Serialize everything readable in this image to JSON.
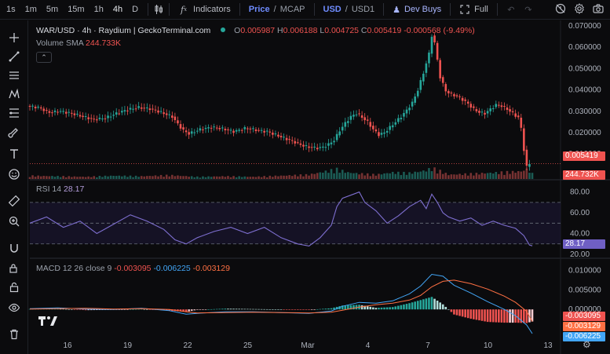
{
  "toolbar": {
    "timeframes": [
      "1s",
      "1m",
      "5m",
      "15m",
      "1h",
      "4h",
      "D"
    ],
    "active_timeframe": "4h",
    "indicators_label": "Indicators",
    "price_label": "Price",
    "mcap_label": "MCAP",
    "usd_label": "USD",
    "usd1_label": "USD1",
    "devbuys_label": "Dev Buys",
    "full_label": "Full"
  },
  "legend": {
    "title": "WAR/USD · 4h · Raydium | GeckoTerminal.com",
    "o_label": "O",
    "o": "0.005987",
    "h_label": "H",
    "h": "0.006188",
    "l_label": "L",
    "l": "0.004725",
    "c_label": "C",
    "c": "0.005419",
    "chg": "-0.000568 (-9.49%)",
    "volume_label": "Volume SMA",
    "volume": "244.733K",
    "rsi_label": "RSI 14",
    "rsi": "28.17",
    "macd_label": "MACD 12 26 close 9",
    "macd_v1": "-0.003095",
    "macd_v2": "-0.006225",
    "macd_v3": "-0.003129"
  },
  "badges": {
    "price": "0.005419",
    "volume": "244.732K",
    "rsi": "28.17",
    "macd1": "-0.003095",
    "macd2": "-0.003129",
    "macd3": "-0.006225"
  },
  "colors": {
    "up": "#26a69a",
    "down": "#ef5350",
    "rsi": "#7e6fd0",
    "macd": "#42a5f5",
    "signal": "#ff7043",
    "accent": "#6f8cff"
  },
  "chart_data": [
    {
      "type": "candlestick",
      "title": "WAR/USD · 4h · Raydium | GeckoTerminal.com",
      "x_ticks": [
        "16",
        "19",
        "22",
        "25",
        "Mar",
        "4",
        "7",
        "10",
        "13"
      ],
      "y_ticks": [
        "0.070000",
        "0.060000",
        "0.050000",
        "0.040000",
        "0.030000",
        "0.020000",
        "0.010000",
        "0.000000"
      ],
      "ylim": [
        -0.0006,
        0.07
      ],
      "close_path": [
        [
          0,
          0.0325
        ],
        [
          4,
          0.0318
        ],
        [
          8,
          0.0295
        ],
        [
          12,
          0.03
        ],
        [
          16,
          0.029
        ],
        [
          20,
          0.0275
        ],
        [
          24,
          0.0262
        ],
        [
          28,
          0.0268
        ],
        [
          32,
          0.029
        ],
        [
          36,
          0.0308
        ],
        [
          40,
          0.0318
        ],
        [
          44,
          0.0312
        ],
        [
          48,
          0.0295
        ],
        [
          52,
          0.0275
        ],
        [
          54,
          0.024
        ],
        [
          56,
          0.021
        ],
        [
          58,
          0.0195
        ],
        [
          60,
          0.0205
        ],
        [
          62,
          0.0215
        ],
        [
          64,
          0.022
        ],
        [
          66,
          0.0225
        ],
        [
          68,
          0.0222
        ],
        [
          70,
          0.0218
        ],
        [
          72,
          0.0212
        ],
        [
          74,
          0.0205
        ],
        [
          76,
          0.0212
        ],
        [
          78,
          0.022
        ],
        [
          80,
          0.0218
        ],
        [
          82,
          0.0212
        ],
        [
          84,
          0.0208
        ],
        [
          86,
          0.0205
        ],
        [
          88,
          0.0195
        ],
        [
          90,
          0.0185
        ],
        [
          92,
          0.0175
        ],
        [
          94,
          0.0165
        ],
        [
          96,
          0.0155
        ],
        [
          98,
          0.0143
        ],
        [
          100,
          0.0135
        ],
        [
          102,
          0.013
        ],
        [
          104,
          0.0128
        ],
        [
          106,
          0.0132
        ],
        [
          108,
          0.0145
        ],
        [
          110,
          0.0165
        ],
        [
          112,
          0.021
        ],
        [
          114,
          0.0245
        ],
        [
          116,
          0.0275
        ],
        [
          118,
          0.029
        ],
        [
          120,
          0.0272
        ],
        [
          122,
          0.025
        ],
        [
          124,
          0.0215
        ],
        [
          126,
          0.019
        ],
        [
          128,
          0.02
        ],
        [
          130,
          0.0225
        ],
        [
          132,
          0.025
        ],
        [
          134,
          0.0275
        ],
        [
          136,
          0.0305
        ],
        [
          138,
          0.034
        ],
        [
          140,
          0.04
        ],
        [
          142,
          0.048
        ],
        [
          144,
          0.057
        ],
        [
          145,
          0.0655
        ],
        [
          146,
          0.062
        ],
        [
          148,
          0.046
        ],
        [
          150,
          0.0395
        ],
        [
          152,
          0.038
        ],
        [
          154,
          0.037
        ],
        [
          156,
          0.0355
        ],
        [
          158,
          0.0335
        ],
        [
          160,
          0.031
        ],
        [
          162,
          0.0295
        ],
        [
          164,
          0.029
        ],
        [
          166,
          0.031
        ],
        [
          168,
          0.033
        ],
        [
          170,
          0.0325
        ],
        [
          172,
          0.031
        ],
        [
          174,
          0.029
        ],
        [
          176,
          0.027
        ],
        [
          177,
          0.022
        ],
        [
          178,
          0.012
        ],
        [
          179,
          0.004
        ],
        [
          180,
          0.0054
        ]
      ],
      "last_close": 0.005419
    },
    {
      "type": "bar",
      "name": "Volume",
      "last_value": "244.732K",
      "values": [
        [
          0,
          0.3
        ],
        [
          10,
          0.25
        ],
        [
          20,
          0.2
        ],
        [
          30,
          0.3
        ],
        [
          40,
          0.25
        ],
        [
          50,
          0.35
        ],
        [
          60,
          0.2
        ],
        [
          70,
          0.25
        ],
        [
          80,
          0.2
        ],
        [
          90,
          0.3
        ],
        [
          100,
          0.4
        ],
        [
          110,
          0.9
        ],
        [
          112,
          0.75
        ],
        [
          114,
          0.6
        ],
        [
          118,
          0.5
        ],
        [
          124,
          0.4
        ],
        [
          130,
          0.6
        ],
        [
          136,
          0.55
        ],
        [
          140,
          0.7
        ],
        [
          142,
          0.8
        ],
        [
          144,
          1.0
        ],
        [
          146,
          0.85
        ],
        [
          150,
          0.4
        ],
        [
          160,
          0.5
        ],
        [
          168,
          0.6
        ],
        [
          176,
          0.7
        ],
        [
          178,
          0.9
        ],
        [
          180,
          0.5
        ]
      ]
    },
    {
      "type": "line",
      "name": "RSI 14",
      "y_ticks": [
        "80.00",
        "60.00",
        "40.00",
        "20.00"
      ],
      "ylim": [
        20,
        82
      ],
      "bands": [
        30,
        50,
        70
      ],
      "x": [
        0,
        6,
        12,
        18,
        24,
        30,
        36,
        42,
        48,
        52,
        56,
        60,
        66,
        72,
        78,
        84,
        90,
        96,
        100,
        104,
        108,
        110,
        112,
        116,
        118,
        120,
        124,
        128,
        132,
        136,
        140,
        142,
        144,
        146,
        148,
        150,
        154,
        158,
        162,
        166,
        170,
        174,
        177,
        179,
        180
      ],
      "values": [
        50,
        56,
        46,
        52,
        40,
        49,
        58,
        52,
        44,
        34,
        30,
        36,
        42,
        46,
        40,
        46,
        36,
        30,
        28,
        36,
        48,
        66,
        74,
        78,
        80,
        70,
        62,
        50,
        57,
        66,
        72,
        64,
        78,
        70,
        60,
        56,
        52,
        55,
        48,
        52,
        48,
        45,
        38,
        29,
        28.17
      ]
    },
    {
      "type": "line",
      "name": "MACD 12 26 close 9",
      "y_ticks": [
        "0.010000",
        "0.005000",
        "0.000000"
      ],
      "ylim": [
        -0.0068,
        0.0105
      ],
      "x": [
        0,
        10,
        20,
        30,
        40,
        50,
        56,
        60,
        70,
        80,
        90,
        100,
        108,
        112,
        118,
        124,
        130,
        136,
        140,
        144,
        148,
        152,
        158,
        164,
        170,
        174,
        178,
        180
      ],
      "macd": [
        0.0002,
        0.0004,
        0.0001,
        0.0,
        0.0003,
        -0.0003,
        -0.0012,
        -0.001,
        -0.0006,
        -0.0006,
        -0.0008,
        -0.001,
        -0.0004,
        0.0008,
        0.0018,
        0.0016,
        0.0022,
        0.004,
        0.006,
        0.009,
        0.0085,
        0.0062,
        0.0042,
        0.002,
        0.0,
        -0.0016,
        -0.004,
        -0.0062
      ],
      "signal": [
        0.0001,
        0.0002,
        0.0003,
        0.0001,
        0.0002,
        0.0,
        -0.0006,
        -0.0009,
        -0.0008,
        -0.0007,
        -0.0008,
        -0.0009,
        -0.0007,
        -0.0002,
        0.0006,
        0.0012,
        0.0016,
        0.0024,
        0.0036,
        0.0058,
        0.0072,
        0.0075,
        0.0066,
        0.0052,
        0.0034,
        0.0018,
        -0.0005,
        -0.0031
      ],
      "hist_last": -0.003095
    }
  ]
}
